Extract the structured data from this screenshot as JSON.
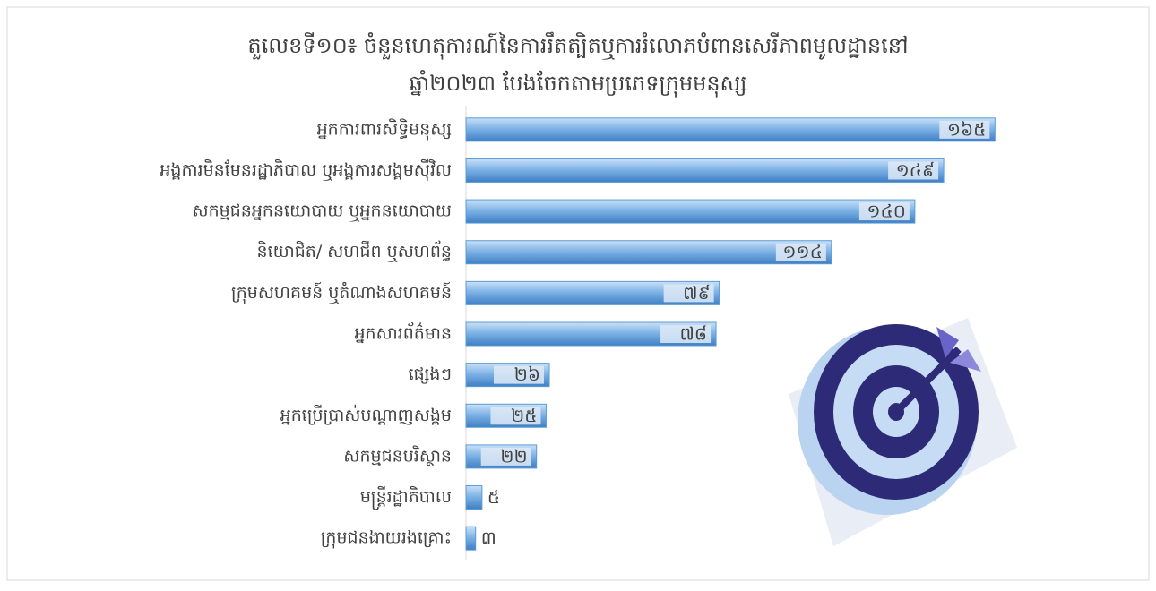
{
  "chart_data": {
    "type": "bar",
    "orientation": "horizontal",
    "title": [
      "តួលេខទី១០៖ ចំនួនហេតុការណ៍នៃការរឹតត្បិតឬការរំលោភបំពានសេរីភាពមូលដ្ឋាននៅ",
      "ឆ្នាំ២០២៣ បែងចែកតាមប្រភេទក្រុមមនុស្ស"
    ],
    "categories": [
      "អ្នកការពារសិទ្ធិមនុស្ស",
      "អង្គការមិនមែនរដ្ឋាភិបាល ឬអង្គការសង្គមស៊ីវិល",
      "សកម្មជនអ្នកនយោបាយ ឬអ្នកនយោបាយ",
      "និយោជិត/ សហជីព ឬសហព័ន្ធ",
      "ក្រុមសហគមន៍ ឬតំណាងសហគមន៍",
      "អ្នកសារព័ត៌មាន",
      "ផ្សេងៗ",
      "អ្នកប្រើប្រាស់បណ្តាញសង្គម",
      "សកម្មជនបរិស្ថាន",
      "មន្ត្រីរដ្ឋាភិបាល",
      "ក្រុមជនងាយរងគ្រោះ"
    ],
    "values": [
      165,
      149,
      140,
      114,
      79,
      78,
      26,
      25,
      22,
      5,
      3
    ],
    "value_labels": [
      "១៦៥",
      "១៤៩",
      "១៤០",
      "១១៤",
      "៧៩",
      "៧៨",
      "២៦",
      "២៥",
      "២២",
      "៥",
      "៣"
    ],
    "color": "#5b9bd5",
    "xlim": [
      0,
      180
    ]
  }
}
